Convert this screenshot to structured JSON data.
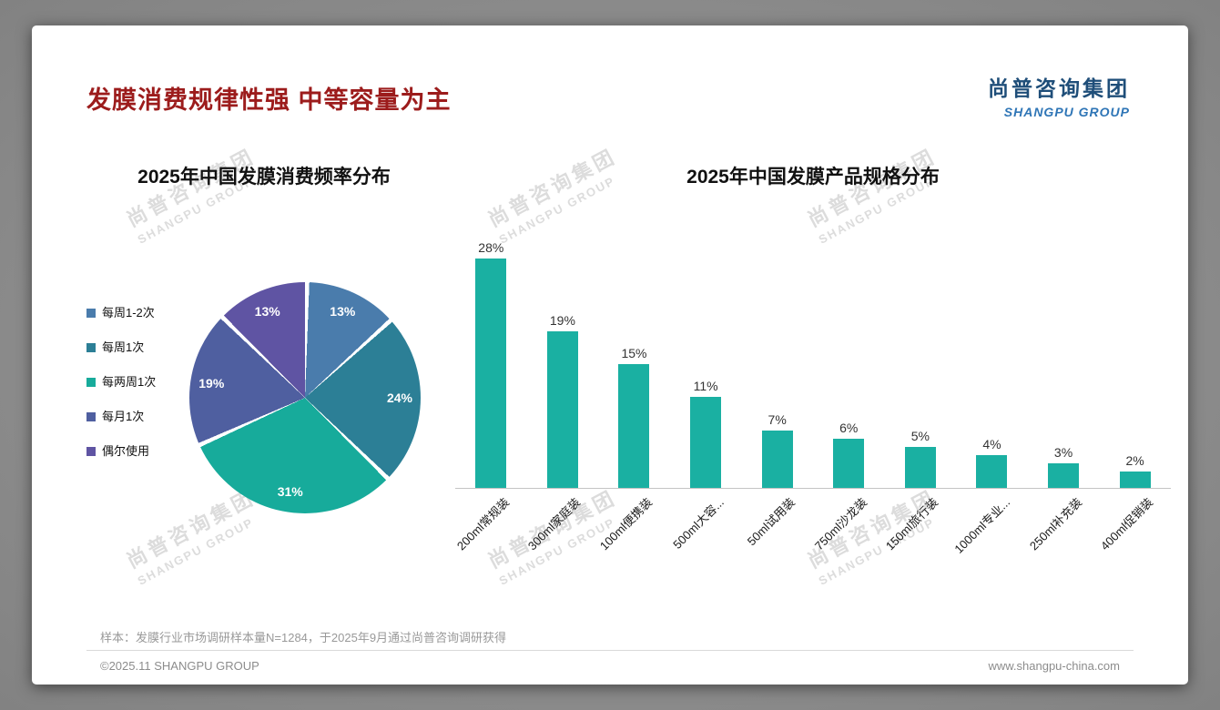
{
  "page": {
    "title": "发膜消费规律性强 中等容量为主",
    "logo": {
      "cn": "尚普咨询集团",
      "en": "SHANGPU GROUP"
    },
    "watermark": {
      "line1": "尚普咨询集团",
      "line2": "SHANGPU GROUP"
    },
    "footnote": "样本：发膜行业市场调研样本量N=1284，于2025年9月通过尚普咨询调研获得",
    "footer_left": "©2025.11 SHANGPU GROUP",
    "footer_right": "www.shangpu-china.com"
  },
  "colors": {
    "title_red": "#9c1c1c",
    "logo_blue": "#1f4e79",
    "accent_teal": "#1ab0a2"
  },
  "chart_data": [
    {
      "type": "pie",
      "title": "2025年中国发膜消费频率分布",
      "labels": [
        "每周1-2次",
        "每周1次",
        "每两周1次",
        "每月1次",
        "偶尔使用"
      ],
      "values": [
        13,
        24,
        31,
        19,
        13
      ],
      "value_labels": [
        "13%",
        "24%",
        "31%",
        "19%",
        "13%"
      ],
      "colors": [
        "#4a7cac",
        "#2c7f96",
        "#17ab9b",
        "#4f5fa0",
        "#5f54a3"
      ],
      "legend_position": "left",
      "start_angle": "top",
      "direction": "clockwise"
    },
    {
      "type": "bar",
      "title": "2025年中国发膜产品规格分布",
      "categories": [
        "200ml常规装",
        "300ml家庭装",
        "100ml便携装",
        "500ml大容...",
        "50ml试用装",
        "750ml沙龙装",
        "150ml旅行装",
        "1000ml专业...",
        "250ml补充装",
        "400ml促销装"
      ],
      "values": [
        28,
        19,
        15,
        11,
        7,
        6,
        5,
        4,
        3,
        2
      ],
      "value_labels": [
        "28%",
        "19%",
        "15%",
        "11%",
        "7%",
        "6%",
        "5%",
        "4%",
        "3%",
        "2%"
      ],
      "bar_color": "#1ab0a2",
      "xlabel": "",
      "ylabel": "",
      "ylim": [
        0,
        30
      ],
      "grid": false,
      "legend_position": "none"
    }
  ]
}
